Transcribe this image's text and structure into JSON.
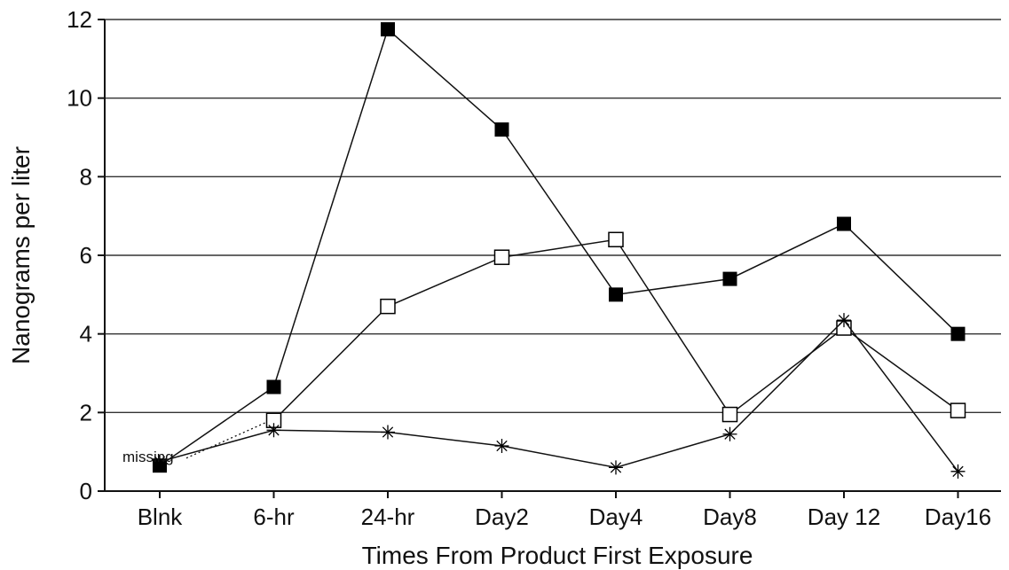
{
  "chart_data": {
    "type": "line",
    "title": "",
    "xlabel": "Times From Product First Exposure",
    "ylabel": "Nanograms per liter",
    "categories": [
      "Blnk",
      "6-hr",
      "24-hr",
      "Day2",
      "Day4",
      "Day8",
      "Day 12",
      "Day16"
    ],
    "yticks": [
      "0",
      "2",
      "4",
      "6",
      "8",
      "10",
      "12"
    ],
    "ylim": [
      0,
      12
    ],
    "grid": true,
    "legend": "none",
    "series": [
      {
        "marker": "filled-square",
        "color": "#000000",
        "values": [
          0.65,
          2.65,
          11.75,
          9.2,
          5.0,
          5.4,
          6.8,
          4.0
        ]
      },
      {
        "marker": "open-square",
        "color": "#000000",
        "values": [
          null,
          1.8,
          4.7,
          5.95,
          6.4,
          1.95,
          4.15,
          2.05
        ]
      },
      {
        "marker": "asterisk",
        "color": "#000000",
        "values": [
          0.75,
          1.55,
          1.5,
          1.15,
          0.6,
          1.45,
          4.35,
          0.5
        ]
      }
    ],
    "annotations": [
      {
        "text": "missing",
        "points_from": "Blnk",
        "points_to": "6-hr",
        "style": "dotted"
      }
    ]
  }
}
